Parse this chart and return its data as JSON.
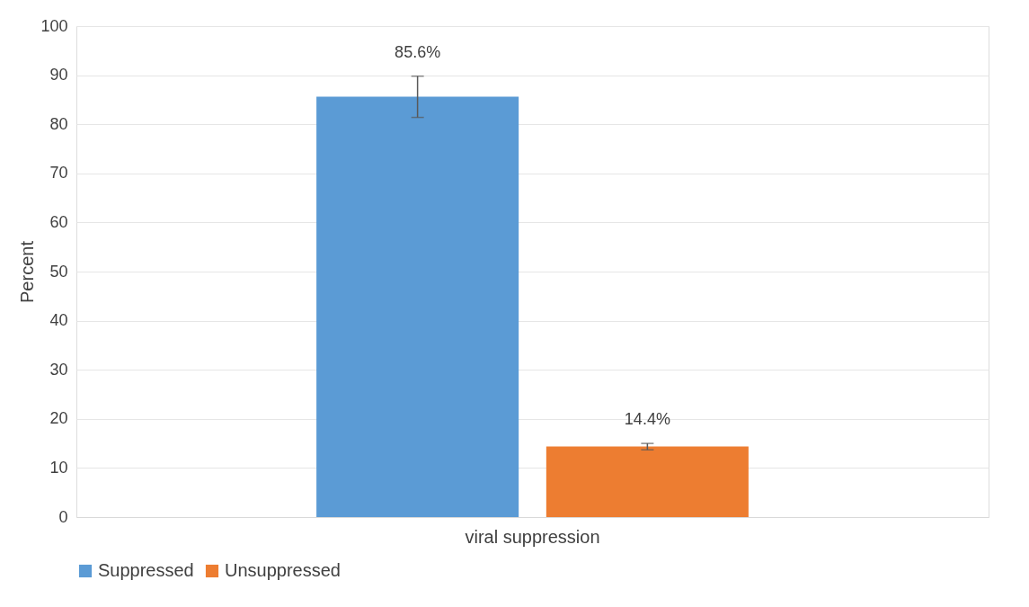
{
  "chart_data": {
    "type": "bar",
    "ylabel": "Percent",
    "categories": [
      "viral suppression"
    ],
    "series": [
      {
        "name": "Suppressed",
        "color": "#5b9bd5",
        "values": [
          85.6
        ],
        "errors": [
          [
            81.4,
            89.8
          ]
        ],
        "value_labels": [
          "85.6%"
        ]
      },
      {
        "name": "Unsuppressed",
        "color": "#ed7d31",
        "values": [
          14.4
        ],
        "errors": [
          [
            13.7,
            15.0
          ]
        ],
        "value_labels": [
          "14.4%"
        ]
      }
    ],
    "ylim": [
      0,
      100
    ],
    "yticks": [
      0,
      10,
      20,
      30,
      40,
      50,
      60,
      70,
      80,
      90,
      100
    ],
    "grid": "y",
    "legend": "bottom"
  }
}
